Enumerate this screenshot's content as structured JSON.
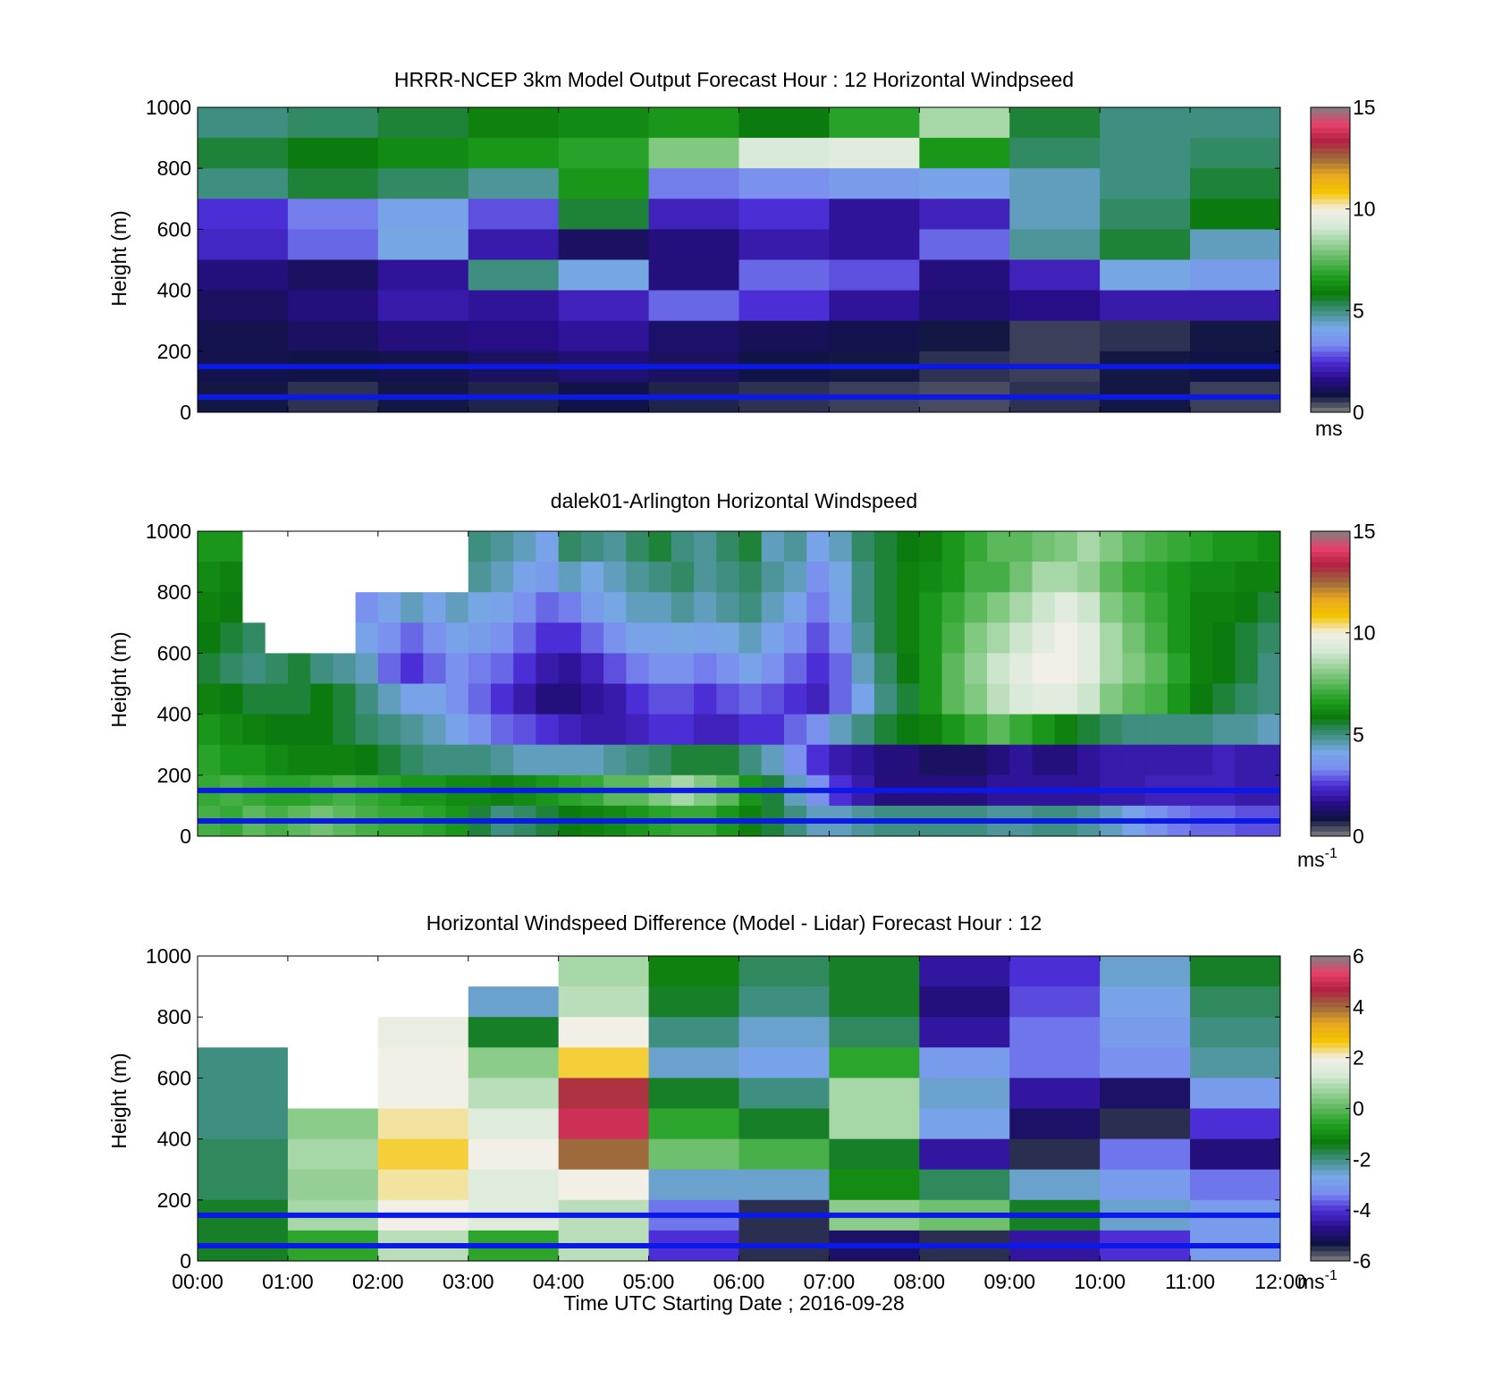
{
  "colors": {
    "model_scale": [
      "#808080",
      "#0d1340",
      "#2a0e8c",
      "#4c2ed6",
      "#7a8df0",
      "#78a8e6",
      "#3f8f80",
      "#0a7a0a",
      "#1e9e1e",
      "#5bb85b",
      "#9bd29b",
      "#d8ead8",
      "#f2f0e6",
      "#f5c400",
      "#e8a820",
      "#9e6a3c",
      "#b02040",
      "#e8406a",
      "#808080"
    ],
    "diff_scale": [
      "#808080",
      "#0d1340",
      "#2a0e8c",
      "#4c2ed6",
      "#7a8df0",
      "#78a8e6",
      "#3f8f80",
      "#0a7a0a",
      "#1e9e1e",
      "#5bb85b",
      "#9bd29b",
      "#d8ead8",
      "#f2f0e6",
      "#f5c400",
      "#e8a820",
      "#9e6a3c",
      "#b02040",
      "#e8406a",
      "#808080"
    ],
    "reference_lines": "#0a18e8"
  },
  "chart_data": [
    {
      "type": "heatmap",
      "title": "HRRR-NCEP 3km Model Output   Forecast Hour : 12 Horizontal Windpseed",
      "ylabel": "Height (m)",
      "ylim": [
        0,
        1000
      ],
      "yticks": [
        "1000",
        "800",
        "600",
        "400",
        "200",
        "0"
      ],
      "x_range_hours": [
        0,
        12
      ],
      "colorbar": {
        "min": 0,
        "max": 15,
        "ticks": [
          "15",
          "10",
          "5",
          "0"
        ],
        "unit": "ms",
        "unit_sup": ""
      },
      "reference_lines_m": [
        150,
        50
      ],
      "heights": [
        1000,
        900,
        800,
        700,
        600,
        500,
        400,
        300,
        200,
        100,
        0
      ],
      "columns_hours": [
        0.5,
        1.5,
        2.5,
        3.5,
        4.5,
        5.5,
        6.5,
        7.5,
        8.5,
        9.5,
        10.5,
        11.5
      ],
      "values": [
        [
          5.0,
          5.2,
          5.5,
          6.0,
          6.2,
          6.5,
          5.8,
          6.8,
          8.5,
          5.5,
          5.0,
          5.0
        ],
        [
          5.5,
          5.8,
          6.2,
          6.5,
          6.8,
          8.0,
          9.2,
          9.5,
          6.5,
          5.2,
          5.0,
          5.2
        ],
        [
          5.0,
          5.5,
          5.2,
          4.8,
          6.5,
          3.2,
          3.5,
          3.8,
          4.0,
          4.5,
          5.0,
          5.5
        ],
        [
          2.5,
          3.2,
          4.0,
          2.8,
          5.5,
          2.2,
          2.5,
          1.8,
          2.2,
          4.5,
          5.2,
          5.8
        ],
        [
          2.3,
          3.0,
          4.2,
          2.0,
          1.2,
          1.5,
          2.0,
          1.8,
          3.0,
          4.8,
          5.5,
          4.5
        ],
        [
          1.5,
          1.2,
          1.8,
          5.0,
          4.2,
          1.5,
          3.0,
          2.8,
          1.5,
          2.2,
          4.2,
          3.8
        ],
        [
          1.2,
          1.5,
          2.0,
          1.8,
          2.2,
          3.0,
          2.5,
          1.8,
          1.4,
          1.6,
          2.0,
          2.0
        ],
        [
          1.0,
          1.2,
          1.5,
          1.6,
          1.8,
          1.3,
          1.1,
          1.0,
          0.8,
          0.5,
          0.6,
          0.8
        ],
        [
          1.0,
          0.9,
          1.0,
          1.2,
          1.4,
          1.2,
          0.9,
          0.8,
          0.6,
          0.5,
          0.8,
          0.9
        ],
        [
          0.8,
          0.6,
          0.8,
          0.7,
          0.9,
          0.7,
          0.6,
          0.5,
          0.4,
          0.6,
          0.8,
          0.5
        ],
        [
          0.8,
          0.6,
          0.8,
          0.7,
          0.9,
          0.7,
          0.6,
          0.5,
          0.4,
          0.6,
          0.8,
          0.5
        ]
      ]
    },
    {
      "type": "heatmap",
      "title": "dalek01-Arlington  Horizontal Windspeed",
      "ylabel": "Height (m)",
      "ylim": [
        0,
        1000
      ],
      "yticks": [
        "1000",
        "800",
        "600",
        "400",
        "200",
        "0"
      ],
      "x_range_hours": [
        0,
        12
      ],
      "colorbar": {
        "min": 0,
        "max": 15,
        "ticks": [
          "15",
          "10",
          "5",
          "0"
        ],
        "unit": "ms",
        "unit_sup": "-1"
      },
      "reference_lines_m": [
        150,
        50
      ],
      "heights": [
        1000,
        900,
        800,
        700,
        600,
        500,
        400,
        300,
        200,
        100,
        0
      ],
      "columns_hours": [
        0.125,
        0.375,
        0.625,
        0.875,
        1.125,
        1.375,
        1.625,
        1.875,
        2.125,
        2.375,
        2.625,
        2.875,
        3.125,
        3.375,
        3.625,
        3.875,
        4.125,
        4.375,
        4.625,
        4.875,
        5.125,
        5.375,
        5.625,
        5.875,
        6.125,
        6.375,
        6.625,
        6.875,
        7.125,
        7.375,
        7.625,
        7.875,
        8.125,
        8.375,
        8.625,
        8.875,
        9.125,
        9.375,
        9.625,
        9.875,
        10.125,
        10.375,
        10.625,
        10.875,
        11.125,
        11.375,
        11.625,
        11.875
      ],
      "values": [
        [
          6.5,
          6.5,
          null,
          null,
          null,
          null,
          null,
          null,
          null,
          null,
          null,
          null,
          5.0,
          4.8,
          4.5,
          4.0,
          5.2,
          5.0,
          4.8,
          5.2,
          5.5,
          5.0,
          4.8,
          5.2,
          5.5,
          4.5,
          4.8,
          4.0,
          4.5,
          5.2,
          5.5,
          5.8,
          6.0,
          6.5,
          7.0,
          7.5,
          7.5,
          7.8,
          8.0,
          8.5,
          8.0,
          7.5,
          7.2,
          7.0,
          6.8,
          6.5,
          6.5,
          6.2
        ],
        [
          6.2,
          6.0,
          null,
          null,
          null,
          null,
          null,
          null,
          null,
          null,
          null,
          null,
          4.8,
          4.5,
          4.0,
          3.8,
          4.5,
          4.2,
          4.5,
          4.8,
          5.0,
          5.2,
          4.8,
          5.0,
          5.2,
          4.8,
          4.5,
          3.5,
          4.2,
          5.0,
          5.5,
          6.0,
          6.2,
          6.5,
          7.2,
          7.2,
          7.8,
          8.5,
          8.5,
          8.2,
          7.5,
          7.0,
          6.8,
          6.5,
          6.2,
          6.2,
          6.0,
          6.0
        ],
        [
          6.0,
          5.8,
          null,
          null,
          null,
          null,
          null,
          3.5,
          4.0,
          4.5,
          4.0,
          4.5,
          4.2,
          4.0,
          3.5,
          3.0,
          3.2,
          3.8,
          4.2,
          4.5,
          4.5,
          4.8,
          4.5,
          4.8,
          5.0,
          4.5,
          4.0,
          3.2,
          4.0,
          5.0,
          5.5,
          6.0,
          6.5,
          7.0,
          7.5,
          8.0,
          8.5,
          9.0,
          9.5,
          9.0,
          8.0,
          7.5,
          7.0,
          6.5,
          6.0,
          6.0,
          5.8,
          5.5
        ],
        [
          5.8,
          5.5,
          5.2,
          null,
          null,
          null,
          null,
          4.0,
          3.5,
          3.0,
          3.5,
          4.0,
          3.8,
          3.5,
          3.0,
          2.5,
          2.5,
          3.0,
          3.5,
          4.0,
          4.0,
          4.2,
          4.0,
          4.2,
          4.5,
          4.0,
          3.5,
          2.8,
          3.5,
          4.8,
          5.5,
          6.0,
          6.5,
          7.2,
          8.0,
          8.5,
          9.0,
          9.5,
          10.0,
          9.5,
          8.5,
          7.8,
          7.2,
          6.5,
          6.0,
          5.8,
          5.5,
          5.2
        ],
        [
          5.5,
          5.2,
          5.0,
          5.2,
          5.5,
          5.0,
          4.8,
          4.5,
          3.0,
          2.5,
          3.0,
          3.5,
          3.2,
          3.0,
          2.5,
          2.0,
          1.8,
          2.2,
          2.8,
          3.2,
          3.5,
          3.5,
          3.2,
          3.5,
          4.0,
          3.5,
          3.0,
          2.5,
          3.0,
          4.5,
          5.2,
          5.8,
          6.5,
          7.5,
          8.2,
          9.0,
          9.5,
          10.0,
          10.0,
          9.5,
          8.5,
          8.0,
          7.5,
          6.8,
          6.0,
          5.8,
          5.5,
          5.0
        ],
        [
          6.0,
          5.8,
          5.5,
          5.5,
          5.5,
          5.8,
          5.5,
          5.0,
          4.5,
          4.0,
          4.0,
          3.5,
          3.0,
          2.5,
          2.0,
          1.5,
          1.5,
          1.8,
          2.0,
          2.5,
          2.8,
          2.8,
          2.5,
          2.8,
          3.0,
          2.8,
          2.5,
          2.2,
          3.0,
          4.0,
          5.0,
          5.5,
          6.5,
          7.5,
          8.0,
          8.8,
          9.2,
          9.5,
          9.5,
          9.0,
          8.0,
          7.5,
          7.2,
          6.5,
          5.8,
          5.5,
          5.2,
          5.0
        ],
        [
          6.5,
          6.2,
          6.0,
          5.8,
          5.8,
          5.8,
          5.5,
          5.2,
          5.0,
          4.8,
          4.5,
          4.0,
          3.5,
          3.0,
          2.8,
          2.5,
          2.2,
          2.0,
          2.0,
          2.2,
          2.5,
          2.5,
          2.2,
          2.2,
          2.5,
          2.5,
          3.0,
          3.5,
          4.5,
          5.0,
          5.5,
          5.8,
          6.0,
          6.5,
          7.0,
          7.5,
          7.0,
          6.5,
          6.0,
          5.5,
          5.2,
          5.0,
          5.0,
          5.0,
          5.0,
          4.8,
          4.8,
          4.5
        ],
        [
          6.8,
          6.5,
          6.5,
          6.2,
          6.0,
          6.0,
          6.0,
          5.8,
          5.5,
          5.2,
          5.0,
          5.0,
          5.0,
          4.8,
          4.5,
          4.5,
          4.5,
          4.5,
          4.8,
          5.0,
          5.2,
          5.5,
          5.5,
          5.5,
          5.0,
          4.5,
          3.5,
          2.5,
          2.0,
          1.8,
          1.5,
          1.5,
          1.2,
          1.2,
          1.2,
          1.5,
          1.8,
          1.5,
          1.5,
          1.8,
          2.0,
          2.0,
          2.0,
          2.0,
          2.0,
          2.2,
          2.0,
          2.0
        ],
        [
          7.0,
          7.2,
          7.0,
          6.8,
          6.8,
          7.0,
          7.2,
          7.0,
          6.8,
          6.5,
          6.5,
          6.2,
          6.2,
          6.0,
          6.2,
          6.5,
          6.8,
          7.0,
          7.5,
          7.5,
          8.0,
          8.5,
          8.0,
          7.5,
          6.5,
          5.5,
          4.5,
          3.5,
          2.5,
          2.0,
          1.5,
          1.5,
          1.5,
          1.5,
          1.5,
          1.8,
          1.8,
          1.8,
          1.8,
          1.8,
          2.0,
          2.0,
          2.2,
          2.2,
          2.2,
          2.2,
          2.0,
          2.0
        ],
        [
          7.2,
          7.0,
          7.5,
          7.2,
          7.5,
          7.8,
          7.5,
          7.2,
          7.0,
          7.0,
          6.8,
          6.5,
          5.5,
          5.0,
          5.2,
          5.5,
          5.8,
          6.0,
          6.2,
          6.5,
          6.8,
          7.0,
          7.0,
          6.5,
          6.0,
          5.5,
          5.0,
          4.5,
          4.5,
          4.8,
          5.0,
          5.0,
          5.0,
          5.0,
          5.0,
          4.8,
          4.8,
          5.0,
          5.0,
          4.8,
          4.5,
          4.0,
          3.5,
          3.2,
          3.0,
          3.0,
          2.8,
          2.8
        ],
        [
          5.5,
          5.2,
          5.5,
          5.0,
          5.2,
          5.5,
          5.0,
          5.2,
          5.5,
          5.0,
          5.2,
          4.8,
          4.5,
          4.2,
          4.0,
          4.5,
          4.2,
          4.5,
          4.0,
          4.2,
          4.0,
          4.2,
          4.5,
          4.0,
          3.8,
          4.0,
          4.2,
          3.5,
          3.5,
          3.8,
          3.5,
          3.2,
          3.5,
          3.2,
          3.0,
          3.2,
          3.0,
          2.8,
          3.0,
          3.2,
          3.0,
          2.8,
          2.5,
          2.5,
          2.8,
          2.5,
          2.5,
          2.5
        ]
      ]
    },
    {
      "type": "heatmap",
      "title": "Horizontal Windspeed Difference (Model - Lidar) Forecast Hour : 12",
      "xlabel": "Time UTC  Starting Date ; 2016-09-28",
      "ylabel": "Height (m)",
      "ylim": [
        0,
        1000
      ],
      "yticks": [
        "1000",
        "800",
        "600",
        "400",
        "200",
        "0"
      ],
      "xticks": [
        "00:00",
        "01:00",
        "02:00",
        "03:00",
        "04:00",
        "05:00",
        "06:00",
        "07:00",
        "08:00",
        "09:00",
        "10:00",
        "11:00",
        "12:00"
      ],
      "x_range_hours": [
        0,
        12
      ],
      "colorbar": {
        "min": -6,
        "max": 6,
        "ticks": [
          "6",
          "4",
          "2",
          "0",
          "-2",
          "-4",
          "-6"
        ],
        "unit": "ms",
        "unit_sup": "-1"
      },
      "reference_lines_m": [
        150,
        50
      ],
      "heights": [
        1000,
        900,
        800,
        700,
        600,
        500,
        400,
        300,
        200,
        100,
        0
      ],
      "columns_hours": [
        0.5,
        1.5,
        2.5,
        3.5,
        4.5,
        5.5,
        6.5,
        7.5,
        8.5,
        9.5,
        10.5,
        11.5
      ],
      "values": [
        [
          null,
          null,
          null,
          null,
          0.8,
          -1.2,
          -1.8,
          -1.5,
          -4.5,
          -4.0,
          -2.5,
          -1.5
        ],
        [
          null,
          null,
          null,
          -2.5,
          1.0,
          -1.5,
          -2.0,
          -1.5,
          -4.8,
          -3.8,
          -2.8,
          -1.8
        ],
        [
          null,
          null,
          1.8,
          -1.5,
          2.0,
          -2.0,
          -2.5,
          -1.8,
          -4.5,
          -3.5,
          -3.0,
          -2.0
        ],
        [
          -2.0,
          null,
          2.0,
          0.5,
          2.5,
          -2.5,
          -2.8,
          -0.5,
          -3.0,
          -3.5,
          -3.2,
          -2.2
        ],
        [
          -2.0,
          null,
          2.0,
          1.0,
          4.5,
          -1.5,
          -2.0,
          0.8,
          -2.5,
          -4.5,
          -5.0,
          -3.0
        ],
        [
          -2.0,
          0.5,
          2.2,
          1.5,
          5.0,
          -0.5,
          -1.5,
          0.8,
          -2.8,
          -5.0,
          -5.5,
          -4.0
        ],
        [
          -1.8,
          0.8,
          2.5,
          2.0,
          4.0,
          0.2,
          -0.2,
          -1.5,
          -4.5,
          -5.5,
          -3.5,
          -4.8
        ],
        [
          -1.8,
          0.6,
          2.2,
          1.5,
          2.0,
          -2.5,
          -2.5,
          -1.0,
          -1.8,
          -2.5,
          -3.0,
          -3.5
        ],
        [
          -1.5,
          0.8,
          2.0,
          1.5,
          1.0,
          -3.5,
          -5.5,
          0.5,
          0.2,
          -1.5,
          -2.5,
          -3.0
        ],
        [
          -1.5,
          -0.5,
          1.0,
          -0.5,
          1.0,
          -4.0,
          -5.5,
          -5.0,
          -5.5,
          -4.5,
          -4.0,
          -3.0
        ],
        [
          -1.5,
          -1.0,
          1.5,
          -1.0,
          0.8,
          -3.0,
          -5.0,
          -3.0,
          -4.0,
          -3.5,
          -3.5,
          -3.0
        ]
      ]
    }
  ]
}
